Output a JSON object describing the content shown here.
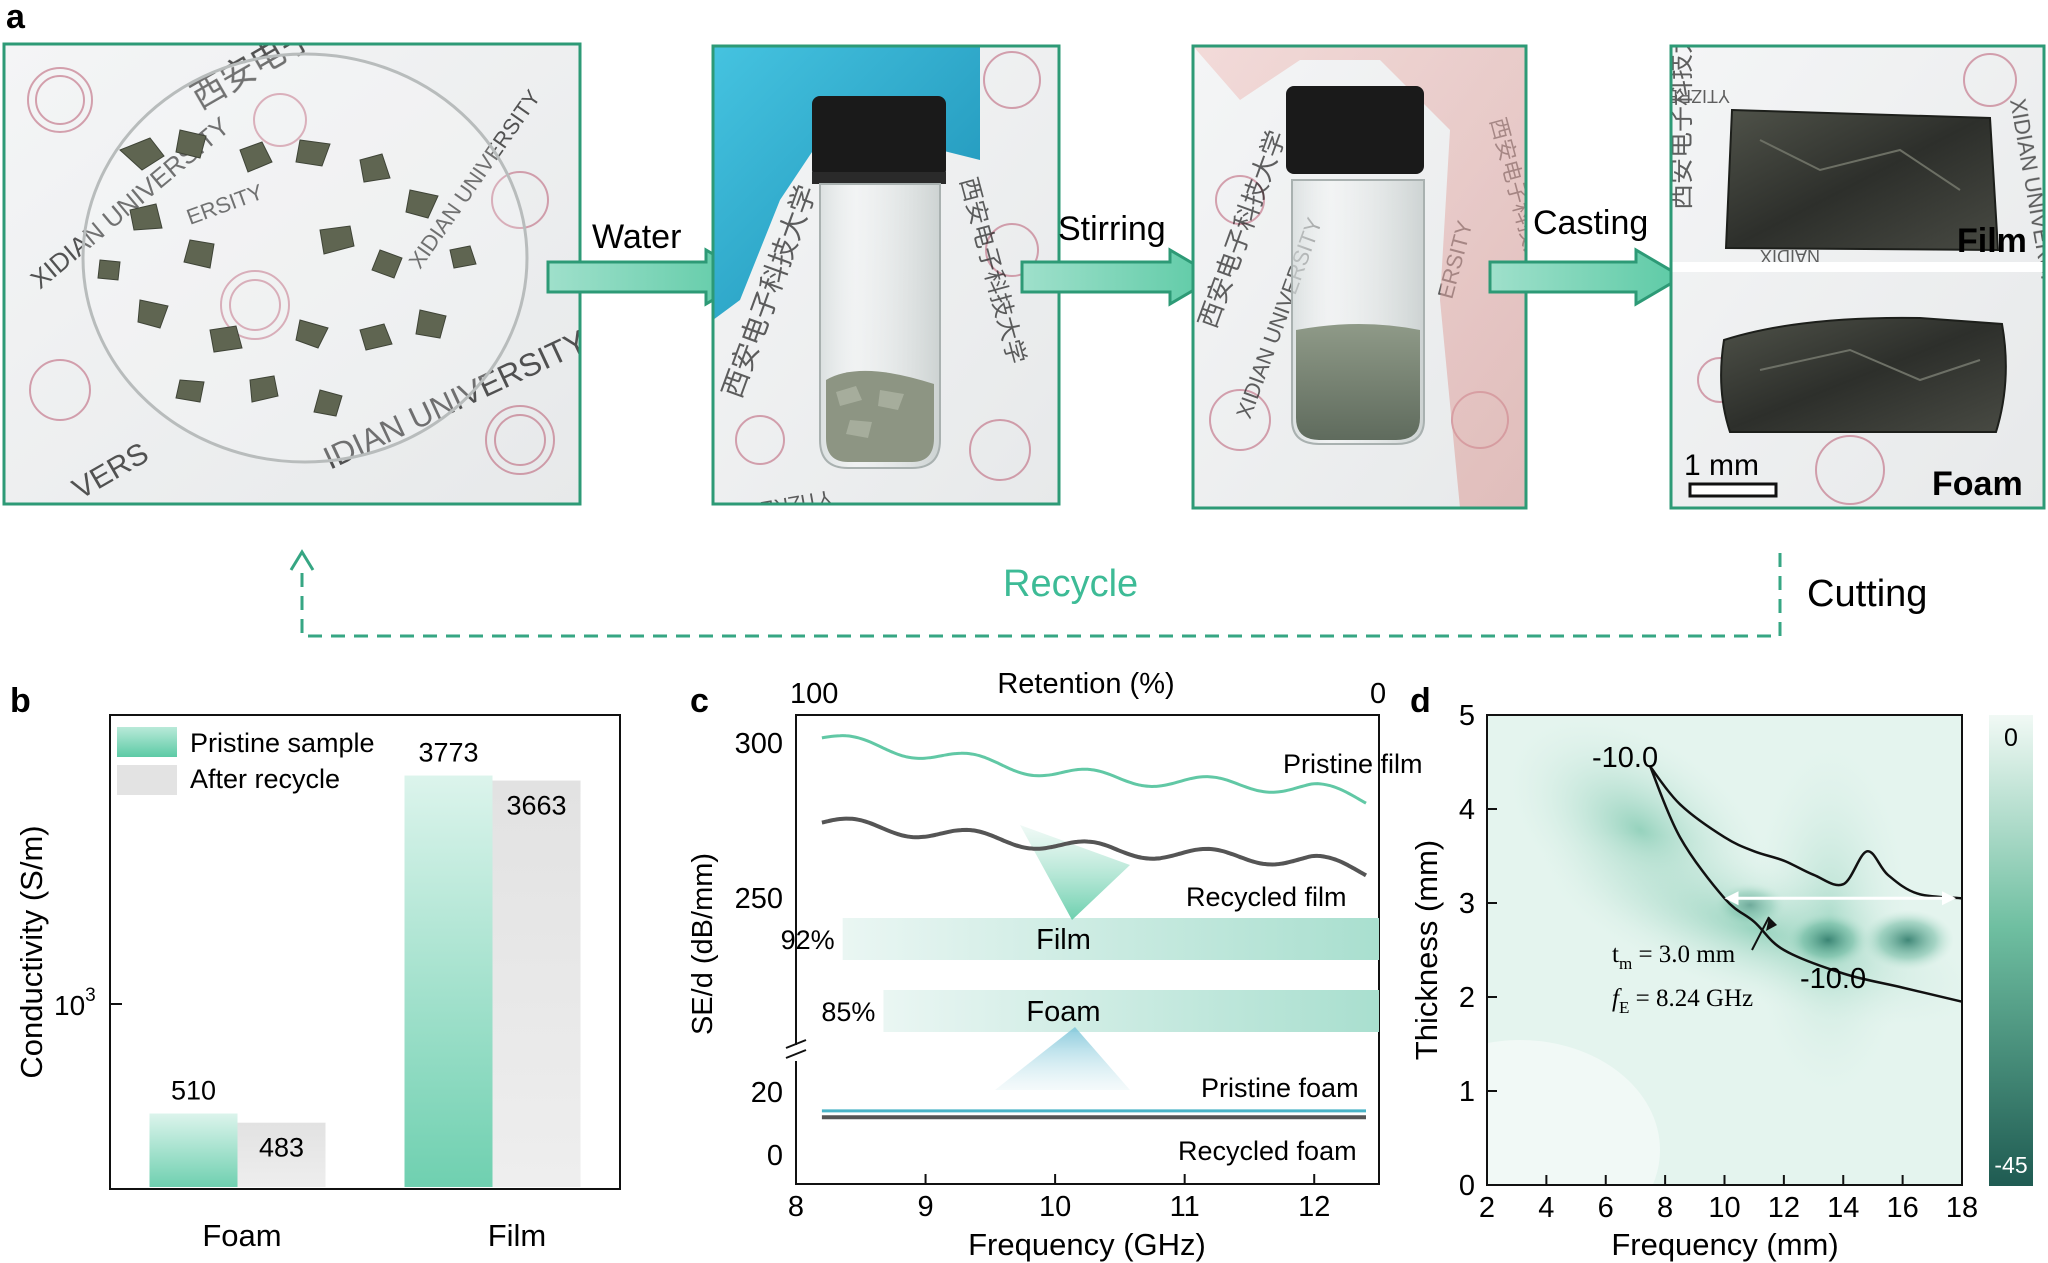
{
  "panels": {
    "a": "a",
    "b": "b",
    "c": "c",
    "d": "d"
  },
  "colors": {
    "teal": "#49c4a3",
    "grey": "#555555",
    "frame": "#2d9a76",
    "dashed": "#36a683",
    "text_green": "#3dbb96"
  },
  "panel_a": {
    "photos": [
      {
        "name": "flakes-in-dish",
        "description_icon": "petri-dish-photo"
      },
      {
        "name": "vial-with-flakes",
        "description_icon": "vial-photo"
      },
      {
        "name": "vial-with-slurry",
        "description_icon": "vial-photo"
      },
      {
        "name": "film-and-foam",
        "description_icon": "samples-photo"
      }
    ],
    "watermark": {
      "text": "XIDIAN UNIVERSITY",
      "text_rev": "YTIZREVINU NAIDIX",
      "cn": "西安电子科技大学",
      "seal": "XIDIAN",
      "seal_rev": "NAIDIX",
      "frag_rs": "RSITY",
      "frag_ve": "VERS",
      "frag_ersity": "ERSITY",
      "frag_univ": "UNIV",
      "frag_v": "V",
      "frag_idian": "IDIAN UNIVERSITY"
    },
    "arrows": [
      "Water",
      "Stirring",
      "Casting"
    ],
    "sample_labels": {
      "film": "Film",
      "foam": "Foam"
    },
    "scale_bar": "1 mm",
    "recycle": "Recycle",
    "cutting": "Cutting"
  },
  "chart_data": [
    {
      "panel": "b",
      "type": "bar",
      "categories": [
        "Foam",
        "Film"
      ],
      "series": [
        {
          "name": "Pristine sample",
          "values": [
            510,
            3773
          ]
        },
        {
          "name": "After recycle",
          "values": [
            483,
            3663
          ]
        }
      ],
      "data_labels": [
        [
          "510",
          "483"
        ],
        [
          "3773",
          "3663"
        ]
      ],
      "ylabel": "Conductivity (S/m)",
      "yscale": "log",
      "ytick": {
        "base": "10",
        "exp": "3",
        "value": 1000
      },
      "ylim": [
        330,
        5400
      ],
      "legend_placement": "top-left"
    },
    {
      "panel": "c",
      "type": "line",
      "xlabel": "Frequency (GHz)",
      "ylabel": "SE/d (dB/mm)",
      "top_axis_label": "Retention (%)",
      "top_axis_ticks": [
        "100",
        "0"
      ],
      "x_ticks": [
        "8",
        "9",
        "10",
        "11",
        "12"
      ],
      "xlim": [
        8.0,
        12.5
      ],
      "y_ticks_upper": [
        "300",
        "250"
      ],
      "y_ticks_lower": [
        "20",
        "0"
      ],
      "axis_break": true,
      "series": [
        {
          "name": "Pristine film",
          "x": [
            8.2,
            8.5,
            9.0,
            9.5,
            10.0,
            10.5,
            11.0,
            11.5,
            12.0,
            12.4
          ],
          "values": [
            301,
            299,
            296,
            293,
            290,
            288,
            287,
            286,
            285,
            281
          ]
        },
        {
          "name": "Recycled film",
          "x": [
            8.2,
            8.5,
            9.0,
            9.5,
            10.0,
            10.5,
            11.0,
            11.5,
            12.0,
            12.4
          ],
          "values": [
            274,
            273,
            271,
            269,
            267,
            265,
            264,
            263,
            262,
            258
          ]
        },
        {
          "name": "Pristine foam",
          "x": [
            8.2,
            9.0,
            10.0,
            11.0,
            12.0,
            12.4
          ],
          "values": [
            14,
            14,
            14,
            14,
            14,
            14
          ]
        },
        {
          "name": "Recycled foam",
          "x": [
            8.2,
            9.0,
            10.0,
            11.0,
            12.0,
            12.4
          ],
          "values": [
            12,
            12,
            12,
            12,
            12,
            12
          ]
        }
      ],
      "retention_bars": [
        {
          "label": "Film",
          "value_label": "92%",
          "value": 92
        },
        {
          "label": "Foam",
          "value_label": "85%",
          "value": 85
        }
      ]
    },
    {
      "panel": "d",
      "type": "heatmap",
      "xlabel": "Frequency (mm)",
      "ylabel": "Thickness (mm)",
      "x_ticks": [
        "2",
        "4",
        "6",
        "8",
        "10",
        "12",
        "14",
        "16",
        "18"
      ],
      "y_ticks": [
        "0",
        "1",
        "2",
        "3",
        "4",
        "5"
      ],
      "xlim": [
        2,
        18
      ],
      "ylim": [
        0,
        5
      ],
      "colorbar": {
        "max_label": "0",
        "min_label": "-45",
        "range": [
          -45,
          0
        ]
      },
      "contour_label": "-10.0",
      "annotation": {
        "t_symbol": "t",
        "t_sub": "m",
        "t_value": " = 3.0 mm",
        "f_symbol": "f",
        "f_sub": "E",
        "f_value": " = 8.24 GHz",
        "x": 8.24,
        "y": 3.0
      },
      "matching_line": {
        "x": [
          10,
          18
        ],
        "y": [
          3.05,
          3.05
        ]
      },
      "contour_upper": {
        "x": [
          7.5,
          8.5,
          10,
          11,
          12,
          13,
          14,
          14.8,
          15.5,
          16.5,
          18
        ],
        "y": [
          4.45,
          4.05,
          3.7,
          3.55,
          3.45,
          3.3,
          3.2,
          3.55,
          3.3,
          3.1,
          3.05
        ]
      },
      "contour_lower": {
        "x": [
          7.5,
          8.5,
          10,
          11,
          12,
          14,
          16,
          18
        ],
        "y": [
          4.45,
          3.7,
          3.05,
          2.8,
          2.5,
          2.25,
          2.1,
          1.95
        ]
      }
    }
  ]
}
